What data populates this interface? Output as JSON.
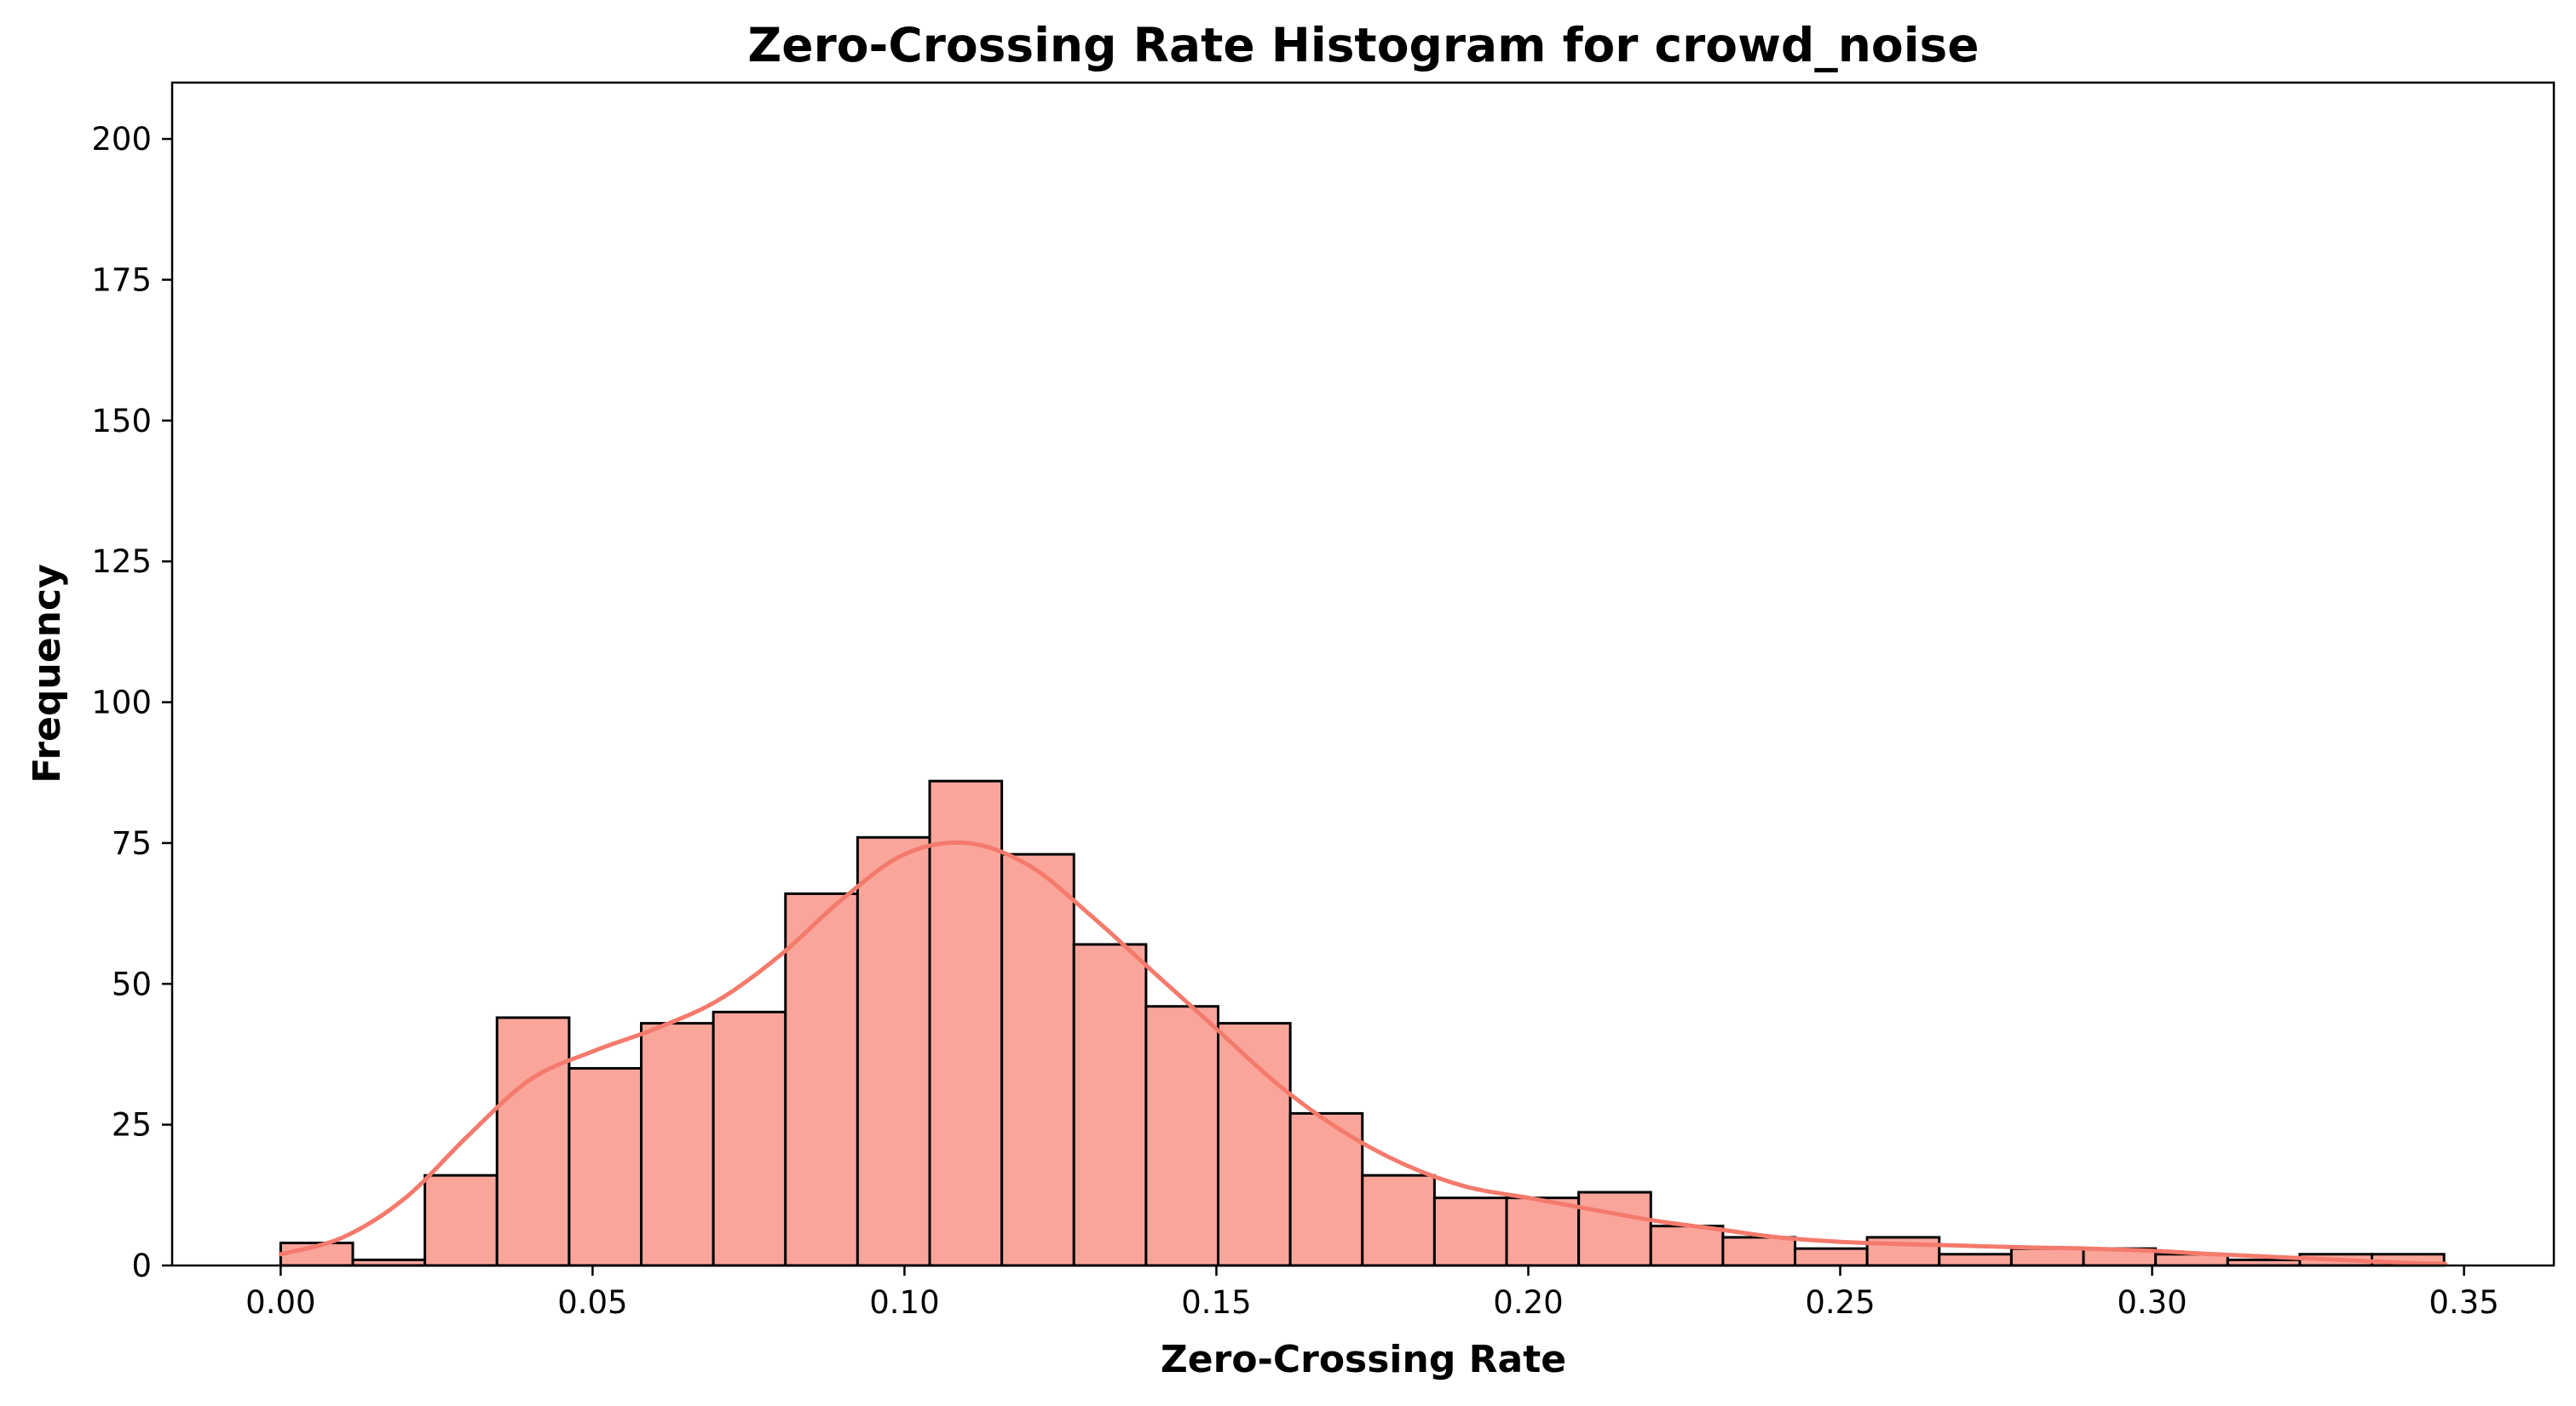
{
  "chart_data": {
    "type": "bar",
    "title": "Zero-Crossing Rate Histogram for crowd_noise",
    "xlabel": "Zero-Crossing Rate",
    "ylabel": "Frequency",
    "xlim": [
      -0.0174,
      0.3644
    ],
    "ylim": [
      0,
      210
    ],
    "x_ticks": [
      "0.00",
      "0.05",
      "0.10",
      "0.15",
      "0.20",
      "0.25",
      "0.30",
      "0.35"
    ],
    "y_ticks": [
      "0",
      "25",
      "50",
      "75",
      "100",
      "125",
      "150",
      "175",
      "200"
    ],
    "bin_start": 0.0,
    "bin_width": 0.01156,
    "values": [
      4,
      1,
      16,
      44,
      35,
      43,
      45,
      66,
      76,
      86,
      73,
      57,
      46,
      43,
      27,
      16,
      12,
      12,
      13,
      7,
      5,
      3,
      5,
      2,
      3,
      3,
      2,
      1,
      2,
      2
    ],
    "kde": {
      "x": [
        0.0,
        0.01,
        0.02,
        0.03,
        0.04,
        0.05,
        0.06,
        0.07,
        0.08,
        0.09,
        0.1,
        0.11,
        0.12,
        0.13,
        0.14,
        0.15,
        0.16,
        0.17,
        0.18,
        0.19,
        0.2,
        0.21,
        0.22,
        0.23,
        0.24,
        0.25,
        0.26,
        0.27,
        0.28,
        0.29,
        0.3,
        0.31,
        0.32,
        0.33,
        0.34,
        0.347
      ],
      "y": [
        2,
        5,
        12,
        23,
        33,
        38,
        42,
        47,
        55,
        65,
        73,
        75,
        71,
        62,
        52,
        42,
        32,
        24,
        18,
        14,
        12,
        10,
        8,
        6.5,
        5,
        4.2,
        3.8,
        3.5,
        3.2,
        3.0,
        2.6,
        2.0,
        1.5,
        1.0,
        0.5,
        0.3
      ]
    },
    "bar_color": "#f9a59a",
    "bar_edge_color": "#000000",
    "kde_color": "#f47a6c",
    "grid": false,
    "legend": false
  }
}
